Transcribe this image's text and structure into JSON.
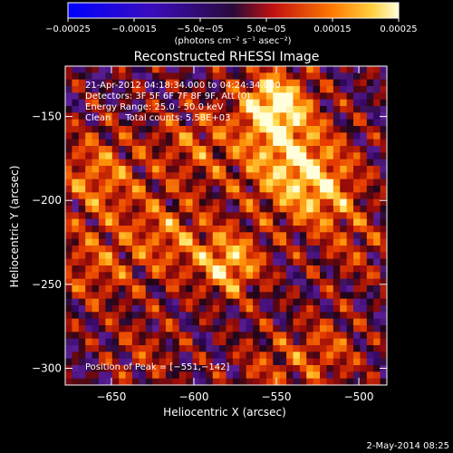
{
  "chart_data": {
    "type": "heatmap",
    "title": "Reconstructed RHESSI Image",
    "xlabel": "Heliocentric X (arcsec)",
    "ylabel": "Heliocentric Y (arcsec)",
    "x_ticks": [
      "−650",
      "−600",
      "−550",
      "−500"
    ],
    "x_tick_values": [
      -650,
      -600,
      -550,
      -500
    ],
    "y_ticks": [
      "−150",
      "−200",
      "−250",
      "−300"
    ],
    "y_tick_values": [
      -150,
      -200,
      -250,
      -300
    ],
    "xlim": [
      -678,
      -483
    ],
    "ylim": [
      -310,
      -120
    ],
    "colorbar": {
      "tick_labels": [
        "−0.00025",
        "−0.00015",
        "−5.0e−05",
        "5.0e−05",
        "0.00015",
        "0.00025"
      ],
      "tick_values": [
        -0.00025,
        -0.00015,
        -5e-05,
        5e-05,
        0.00015,
        0.00025
      ],
      "range": [
        -0.00025,
        0.00025
      ],
      "units": "(photons cm⁻² s⁻¹ asec⁻²)"
    },
    "annotations": [
      "21-Apr-2012 04:18:34.000 to 04:24:34.000",
      "Detectors: 3F 5F 6F 7F 8F 9F, Att (0)",
      "Energy Range: 25.0 - 50.0 keV",
      "Clean     Total counts: 5.58E+03"
    ],
    "peak_label": "Position of Peak = [−551,−142]",
    "peak": [
      -551,
      -142
    ],
    "hotspots": [
      {
        "x": -551,
        "y": -142,
        "amp": 1.0,
        "w": 14
      },
      {
        "x": -545,
        "y": -175,
        "amp": 0.75,
        "w": 22
      },
      {
        "x": -522,
        "y": -195,
        "amp": 0.6,
        "w": 18
      },
      {
        "x": -578,
        "y": -238,
        "amp": 0.85,
        "w": 14
      },
      {
        "x": -615,
        "y": -222,
        "amp": 0.55,
        "w": 18
      },
      {
        "x": -658,
        "y": -185,
        "amp": 0.6,
        "w": 20
      },
      {
        "x": -660,
        "y": -240,
        "amp": 0.45,
        "w": 18
      },
      {
        "x": -600,
        "y": -165,
        "amp": 0.45,
        "w": 18
      },
      {
        "x": -520,
        "y": -290,
        "amp": 0.45,
        "w": 16
      },
      {
        "x": -555,
        "y": -300,
        "amp": 0.35,
        "w": 16
      },
      {
        "x": -630,
        "y": -290,
        "amp": 0.3,
        "w": 16
      },
      {
        "x": -500,
        "y": -230,
        "amp": 0.3,
        "w": 16
      }
    ]
  },
  "footer": {
    "date": "2-May-2014 08:25"
  }
}
